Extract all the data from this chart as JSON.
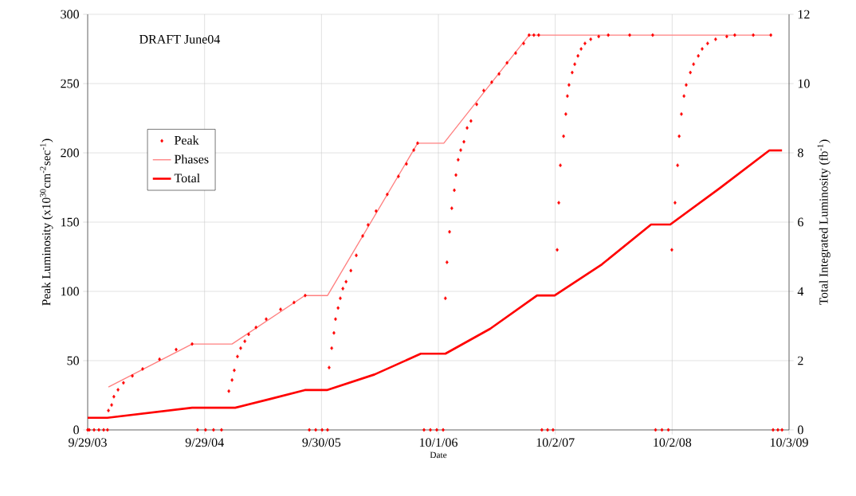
{
  "chart_data": {
    "type": "line",
    "xlabel": "Date",
    "ylabel": "Peak Luminosity (x10$^{30}$cm$^{-2}$sec$^{-1}$)",
    "y2label": "Total Integrated Luminosity (fb$^{-1}$)",
    "annotations": [
      "DRAFT June04"
    ],
    "xlim": [
      "2003-09-29",
      "2009-10-03"
    ],
    "xticks": [
      {
        "value": "2003-09-29",
        "label": "9/29/03"
      },
      {
        "value": "2004-09-29",
        "label": "9/29/04"
      },
      {
        "value": "2005-09-30",
        "label": "9/30/05"
      },
      {
        "value": "2006-10-01",
        "label": "10/1/06"
      },
      {
        "value": "2007-10-02",
        "label": "10/2/07"
      },
      {
        "value": "2008-10-02",
        "label": "10/2/08"
      },
      {
        "value": "2009-10-03",
        "label": "10/3/09"
      }
    ],
    "ylim": [
      0,
      300
    ],
    "yticks": [
      0,
      50,
      100,
      150,
      200,
      250,
      300
    ],
    "y2lim": [
      0,
      12
    ],
    "y2ticks": [
      0,
      2,
      4,
      6,
      8,
      10,
      12
    ],
    "grid": true,
    "legend": "left",
    "series": [
      {
        "name": "Peak",
        "type": "scatter",
        "marker": "diamond",
        "color": "#ff0000",
        "x": [
          "2003-09-29",
          "2003-10-04",
          "2003-10-19",
          "2003-11-03",
          "2003-11-18",
          "2003-11-30",
          "2003-12-03",
          "2003-12-13",
          "2003-12-20",
          "2004-01-02",
          "2004-01-19",
          "2004-02-16",
          "2004-03-19",
          "2004-05-11",
          "2004-07-02",
          "2004-08-21",
          "2004-09-07",
          "2004-10-02",
          "2004-10-27",
          "2004-11-21",
          "2004-12-14",
          "2004-12-24",
          "2004-12-31",
          "2005-01-10",
          "2005-01-20",
          "2005-02-02",
          "2005-02-14",
          "2005-03-09",
          "2005-04-10",
          "2005-05-25",
          "2005-07-06",
          "2005-08-10",
          "2005-08-23",
          "2005-09-12",
          "2005-10-02",
          "2005-10-19",
          "2005-10-24",
          "2005-11-01",
          "2005-11-08",
          "2005-11-13",
          "2005-11-21",
          "2005-11-28",
          "2005-12-06",
          "2005-12-16",
          "2005-12-31",
          "2006-01-17",
          "2006-02-06",
          "2006-02-23",
          "2006-03-20",
          "2006-04-24",
          "2006-05-29",
          "2006-06-23",
          "2006-07-16",
          "2006-07-28",
          "2006-08-17",
          "2006-09-06",
          "2006-09-26",
          "2006-10-16",
          "2006-10-23",
          "2006-10-28",
          "2006-11-05",
          "2006-11-12",
          "2006-11-20",
          "2006-11-25",
          "2006-12-02",
          "2006-12-10",
          "2006-12-20",
          "2006-12-30",
          "2007-01-11",
          "2007-01-29",
          "2007-02-20",
          "2007-03-17",
          "2007-04-09",
          "2007-05-04",
          "2007-05-31",
          "2007-06-25",
          "2007-07-12",
          "2007-07-27",
          "2007-08-11",
          "2007-08-21",
          "2007-09-08",
          "2007-09-25",
          "2007-10-08",
          "2007-10-13",
          "2007-10-18",
          "2007-10-28",
          "2007-11-04",
          "2007-11-09",
          "2007-11-14",
          "2007-11-24",
          "2007-12-02",
          "2007-12-12",
          "2007-12-22",
          "2008-01-03",
          "2008-01-21",
          "2008-02-15",
          "2008-03-16",
          "2008-05-22",
          "2008-08-02",
          "2008-08-11",
          "2008-08-31",
          "2008-09-20",
          "2008-10-01",
          "2008-10-11",
          "2008-10-19",
          "2008-10-24",
          "2008-10-31",
          "2008-11-08",
          "2008-11-15",
          "2008-11-28",
          "2008-12-08",
          "2008-12-23",
          "2009-01-04",
          "2009-01-21",
          "2009-02-15",
          "2009-03-22",
          "2009-04-16",
          "2009-06-13",
          "2009-08-07",
          "2009-08-14",
          "2009-08-29",
          "2009-09-11"
        ],
        "values": [
          0,
          0,
          0,
          0,
          0,
          0,
          14,
          18,
          24,
          29,
          34,
          39,
          44,
          51,
          58,
          62,
          0,
          0,
          0,
          0,
          28,
          36,
          43,
          53,
          59,
          64,
          69,
          74,
          80,
          87,
          92,
          97,
          0,
          0,
          0,
          0,
          45,
          59,
          70,
          80,
          88,
          95,
          102,
          107,
          115,
          126,
          140,
          148,
          158,
          170,
          183,
          192,
          202,
          207,
          0,
          0,
          0,
          0,
          95,
          121,
          143,
          160,
          173,
          184,
          195,
          202,
          208,
          218,
          223,
          235,
          245,
          251,
          257,
          265,
          272,
          279,
          285,
          285,
          285,
          0,
          0,
          0,
          130,
          164,
          191,
          212,
          228,
          241,
          249,
          258,
          264,
          270,
          275,
          279,
          282,
          284,
          285,
          285,
          285,
          0,
          0,
          0,
          130,
          164,
          191,
          212,
          228,
          241,
          249,
          258,
          264,
          270,
          275,
          279,
          282,
          284,
          285,
          285,
          285,
          0,
          0,
          0
        ]
      },
      {
        "name": "Phases",
        "color": "#ff8080",
        "x": [
          "2003-12-03",
          "2004-08-21",
          "2004-12-24",
          "2005-08-09",
          "2005-10-19",
          "2006-07-28",
          "2006-10-18",
          "2007-07-12",
          "2009-08-09"
        ],
        "values": [
          31,
          62,
          62,
          97,
          97,
          207,
          207,
          285,
          285
        ]
      },
      {
        "name": "Total",
        "axis": "y2",
        "color": "#ff0000",
        "x": [
          "2003-09-29",
          "2003-11-30",
          "2004-08-21",
          "2005-01-03",
          "2005-04-25",
          "2005-08-09",
          "2005-10-17",
          "2006-03-15",
          "2006-08-07",
          "2006-10-23",
          "2007-03-12",
          "2007-08-06",
          "2007-09-30",
          "2008-02-25",
          "2008-07-28",
          "2008-09-26",
          "2009-02-28",
          "2009-08-02",
          "2009-09-11"
        ],
        "values": [
          0.35,
          0.35,
          0.64,
          0.64,
          0.9,
          1.15,
          1.15,
          1.6,
          2.2,
          2.2,
          2.92,
          3.88,
          3.88,
          4.78,
          5.93,
          5.93,
          6.98,
          8.07,
          8.07
        ]
      }
    ]
  }
}
